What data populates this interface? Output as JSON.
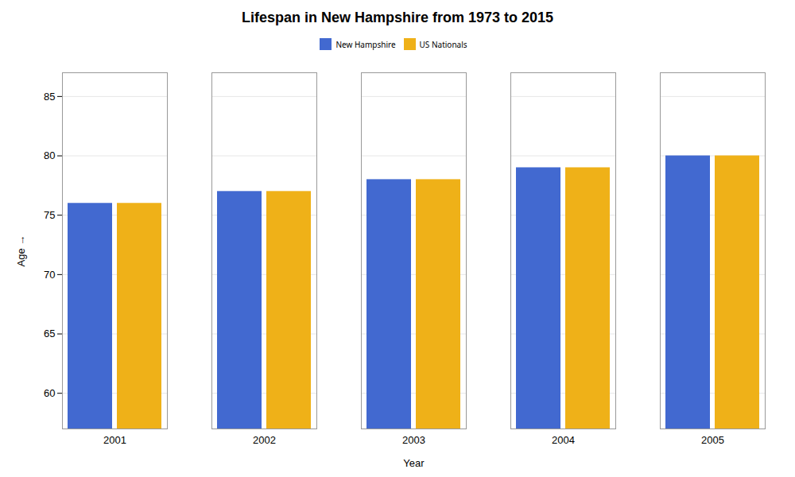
{
  "chart_data": {
    "type": "bar",
    "title": "Lifespan in New Hampshire from 1973 to 2015",
    "x_label": "Year",
    "y_label": "Age",
    "categories": [
      "2001",
      "2002",
      "2003",
      "2004",
      "2005"
    ],
    "series": [
      {
        "name": "New Hampshire",
        "values": [
          76,
          77,
          78,
          79,
          80
        ]
      },
      {
        "name": "US Nationals",
        "values": [
          76,
          77,
          78,
          79,
          80
        ]
      }
    ],
    "ylim": [
      57,
      87
    ],
    "yticks": [
      60,
      65,
      70,
      75,
      80,
      85
    ],
    "grid": true,
    "legend": "top"
  }
}
